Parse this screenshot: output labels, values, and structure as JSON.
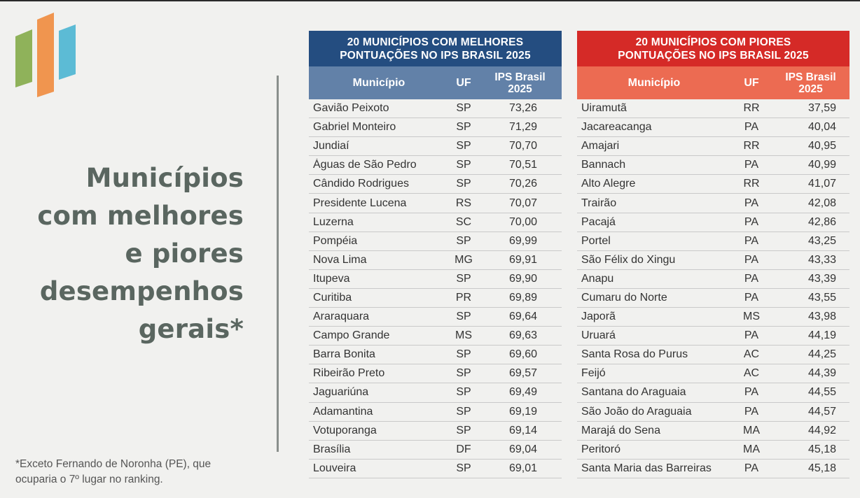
{
  "headline": [
    "Municípios",
    "com melhores",
    "e piores",
    "desempenhos",
    "gerais*"
  ],
  "footnote": [
    "*Exceto Fernando de Noronha (PE), que",
    "ocuparia o 7º lugar no ranking."
  ],
  "colors": {
    "best_title": "#244d80",
    "best_header": "#6281a8",
    "worst_title": "#d52a27",
    "worst_header": "#ec6b52",
    "logo_green": "#8fb25a",
    "logo_orange": "#f0954f",
    "logo_blue": "#5cbbd5",
    "headline": "#5a6660"
  },
  "logo": {
    "icon": "three-bars-logo-icon"
  },
  "best": {
    "title": [
      "20 MUNICÍPIOS COM MELHORES",
      "PONTUAÇÕES NO IPS BRASIL 2025"
    ],
    "headers": {
      "municipio": "Município",
      "uf": "UF",
      "ips": [
        "IPS Brasil",
        "2025"
      ]
    },
    "rows": [
      {
        "m": "Gavião Peixoto",
        "uf": "SP",
        "ips": "73,26"
      },
      {
        "m": "Gabriel Monteiro",
        "uf": "SP",
        "ips": "71,29"
      },
      {
        "m": "Jundiaí",
        "uf": "SP",
        "ips": "70,70"
      },
      {
        "m": "Águas de São Pedro",
        "uf": "SP",
        "ips": "70,51"
      },
      {
        "m": "Cândido Rodrigues",
        "uf": "SP",
        "ips": "70,26"
      },
      {
        "m": "Presidente Lucena",
        "uf": "RS",
        "ips": "70,07"
      },
      {
        "m": "Luzerna",
        "uf": "SC",
        "ips": "70,00"
      },
      {
        "m": "Pompéia",
        "uf": "SP",
        "ips": "69,99"
      },
      {
        "m": "Nova Lima",
        "uf": "MG",
        "ips": "69,91"
      },
      {
        "m": "Itupeva",
        "uf": "SP",
        "ips": "69,90"
      },
      {
        "m": "Curitiba",
        "uf": "PR",
        "ips": "69,89"
      },
      {
        "m": "Araraquara",
        "uf": "SP",
        "ips": "69,64"
      },
      {
        "m": "Campo Grande",
        "uf": "MS",
        "ips": "69,63"
      },
      {
        "m": "Barra Bonita",
        "uf": "SP",
        "ips": "69,60"
      },
      {
        "m": "Ribeirão Preto",
        "uf": "SP",
        "ips": "69,57"
      },
      {
        "m": "Jaguariúna",
        "uf": "SP",
        "ips": "69,49"
      },
      {
        "m": "Adamantina",
        "uf": "SP",
        "ips": "69,19"
      },
      {
        "m": "Votuporanga",
        "uf": "SP",
        "ips": "69,14"
      },
      {
        "m": "Brasília",
        "uf": "DF",
        "ips": "69,04"
      },
      {
        "m": "Louveira",
        "uf": "SP",
        "ips": "69,01"
      }
    ]
  },
  "worst": {
    "title": [
      "20 MUNICÍPIOS COM PIORES",
      "PONTUAÇÕES NO IPS BRASIL 2025"
    ],
    "headers": {
      "municipio": "Município",
      "uf": "UF",
      "ips": [
        "IPS Brasil",
        "2025"
      ]
    },
    "rows": [
      {
        "m": "Uiramutã",
        "uf": "RR",
        "ips": "37,59"
      },
      {
        "m": "Jacareacanga",
        "uf": "PA",
        "ips": "40,04"
      },
      {
        "m": "Amajari",
        "uf": "RR",
        "ips": "40,95"
      },
      {
        "m": "Bannach",
        "uf": "PA",
        "ips": "40,99"
      },
      {
        "m": "Alto Alegre",
        "uf": "RR",
        "ips": "41,07"
      },
      {
        "m": "Trairão",
        "uf": "PA",
        "ips": "42,08"
      },
      {
        "m": "Pacajá",
        "uf": "PA",
        "ips": "42,86"
      },
      {
        "m": "Portel",
        "uf": "PA",
        "ips": "43,25"
      },
      {
        "m": "São Félix do Xingu",
        "uf": "PA",
        "ips": "43,33"
      },
      {
        "m": "Anapu",
        "uf": "PA",
        "ips": "43,39"
      },
      {
        "m": "Cumaru do Norte",
        "uf": "PA",
        "ips": "43,55"
      },
      {
        "m": "Japorã",
        "uf": "MS",
        "ips": "43,98"
      },
      {
        "m": "Uruará",
        "uf": "PA",
        "ips": "44,19"
      },
      {
        "m": "Santa Rosa do Purus",
        "uf": "AC",
        "ips": "44,25"
      },
      {
        "m": "Feijó",
        "uf": "AC",
        "ips": "44,39"
      },
      {
        "m": "Santana do Araguaia",
        "uf": "PA",
        "ips": "44,55"
      },
      {
        "m": "São João do Araguaia",
        "uf": "PA",
        "ips": "44,57"
      },
      {
        "m": "Marajá do Sena",
        "uf": "MA",
        "ips": "44,92"
      },
      {
        "m": "Peritoró",
        "uf": "MA",
        "ips": "45,18"
      },
      {
        "m": "Santa Maria das Barreiras",
        "uf": "PA",
        "ips": "45,18"
      }
    ]
  }
}
